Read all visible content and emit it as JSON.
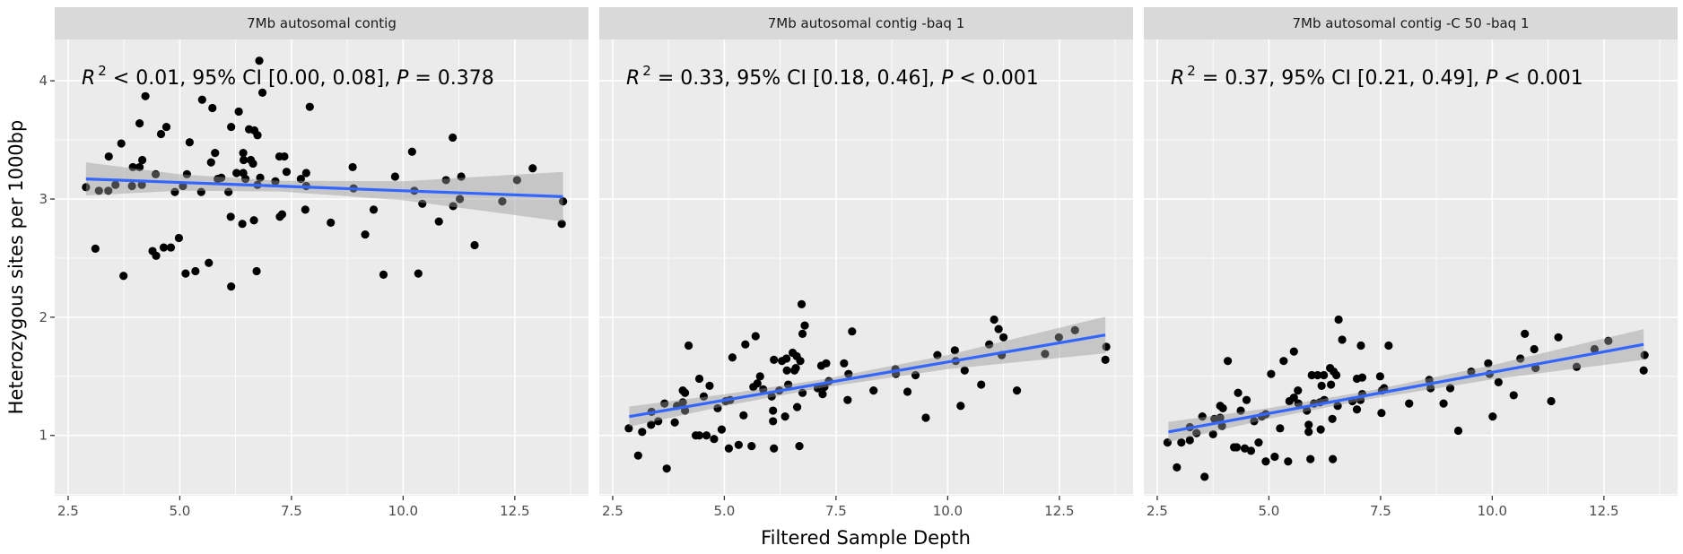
{
  "chart_data": {
    "type": "scatter",
    "xlabel": "Filtered Sample Depth",
    "ylabel": "Heterozygous sites per 1000bp",
    "xlim": [
      2.2,
      14.15
    ],
    "ylim": [
      0.49,
      4.35
    ],
    "x_ticks": [
      "2.5",
      "5.0",
      "7.5",
      "10.0",
      "12.5"
    ],
    "x_tick_values": [
      2.5,
      5.0,
      7.5,
      10.0,
      12.5
    ],
    "y_ticks": [
      "1",
      "2",
      "3",
      "4"
    ],
    "y_tick_values": [
      1,
      2,
      3,
      4
    ],
    "grid": true,
    "colors": {
      "points": "#000000",
      "fit_line": "#3366FF",
      "ci_band": "#999999",
      "panel_bg": "#EBEBEB",
      "strip_bg": "#D9D9D9"
    },
    "panels": [
      {
        "title": "7Mb autosomal contig",
        "annotation": {
          "r": "R",
          "sup": "2",
          "mid": " < 0.01, 95% CI [0.00, 0.08], ",
          "p": "P",
          "end": " = 0.378"
        },
        "points": [
          [
            2.9,
            3.1
          ],
          [
            3.11,
            2.58
          ],
          [
            3.19,
            3.07
          ],
          [
            3.4,
            3.07
          ],
          [
            3.41,
            3.36
          ],
          [
            3.56,
            3.12
          ],
          [
            3.69,
            3.47
          ],
          [
            3.74,
            2.35
          ],
          [
            3.93,
            3.11
          ],
          [
            3.95,
            3.27
          ],
          [
            4.1,
            3.27
          ],
          [
            4.1,
            3.64
          ],
          [
            4.15,
            3.12
          ],
          [
            4.16,
            3.33
          ],
          [
            4.23,
            3.87
          ],
          [
            4.39,
            2.56
          ],
          [
            4.46,
            3.21
          ],
          [
            4.47,
            2.52
          ],
          [
            4.58,
            3.55
          ],
          [
            4.64,
            2.59
          ],
          [
            4.7,
            3.61
          ],
          [
            4.8,
            2.59
          ],
          [
            4.89,
            3.06
          ],
          [
            4.98,
            2.67
          ],
          [
            5.07,
            3.11
          ],
          [
            5.13,
            2.37
          ],
          [
            5.16,
            3.21
          ],
          [
            5.22,
            3.48
          ],
          [
            5.35,
            2.39
          ],
          [
            5.48,
            3.06
          ],
          [
            5.5,
            3.84
          ],
          [
            5.65,
            2.46
          ],
          [
            5.7,
            3.31
          ],
          [
            5.73,
            3.77
          ],
          [
            5.79,
            3.39
          ],
          [
            5.85,
            3.17
          ],
          [
            5.93,
            3.18
          ],
          [
            6.09,
            3.06
          ],
          [
            6.14,
            2.85
          ],
          [
            6.15,
            3.61
          ],
          [
            6.15,
            2.26
          ],
          [
            6.27,
            3.22
          ],
          [
            6.32,
            3.74
          ],
          [
            6.4,
            2.79
          ],
          [
            6.42,
            3.39
          ],
          [
            6.42,
            3.22
          ],
          [
            6.43,
            3.33
          ],
          [
            6.47,
            3.17
          ],
          [
            6.55,
            3.59
          ],
          [
            6.59,
            3.33
          ],
          [
            6.64,
            3.3
          ],
          [
            6.66,
            2.82
          ],
          [
            6.67,
            3.58
          ],
          [
            6.72,
            2.39
          ],
          [
            6.74,
            3.12
          ],
          [
            6.74,
            3.54
          ],
          [
            6.78,
            4.17
          ],
          [
            6.8,
            3.18
          ],
          [
            6.85,
            3.9
          ],
          [
            7.14,
            3.15
          ],
          [
            7.24,
            2.85
          ],
          [
            7.23,
            3.36
          ],
          [
            7.29,
            2.87
          ],
          [
            7.34,
            3.36
          ],
          [
            7.39,
            3.23
          ],
          [
            7.71,
            3.17
          ],
          [
            7.81,
            2.91
          ],
          [
            7.83,
            3.22
          ],
          [
            7.83,
            3.11
          ],
          [
            7.91,
            3.78
          ],
          [
            8.38,
            2.8
          ],
          [
            8.87,
            3.27
          ],
          [
            8.89,
            3.09
          ],
          [
            9.15,
            2.7
          ],
          [
            9.34,
            2.91
          ],
          [
            9.56,
            2.36
          ],
          [
            9.82,
            3.19
          ],
          [
            10.2,
            3.4
          ],
          [
            10.25,
            3.07
          ],
          [
            10.34,
            2.37
          ],
          [
            10.43,
            2.96
          ],
          [
            10.8,
            2.81
          ],
          [
            10.96,
            3.16
          ],
          [
            11.11,
            3.52
          ],
          [
            11.12,
            2.94
          ],
          [
            11.27,
            3.0
          ],
          [
            11.3,
            3.19
          ],
          [
            11.6,
            2.61
          ],
          [
            12.22,
            2.98
          ],
          [
            12.55,
            3.16
          ],
          [
            12.9,
            3.26
          ],
          [
            13.55,
            2.79
          ],
          [
            13.58,
            2.98
          ]
        ],
        "fit": {
          "x": [
            2.9,
            5.0,
            7.2,
            10.0,
            13.58
          ],
          "y": [
            3.17,
            3.14,
            3.11,
            3.07,
            3.02
          ],
          "lower": [
            3.03,
            3.07,
            3.065,
            2.99,
            2.81
          ],
          "upper": [
            3.31,
            3.21,
            3.155,
            3.15,
            3.23
          ]
        }
      },
      {
        "title": "7Mb autosomal contig -baq 1",
        "annotation": {
          "r": "R",
          "sup": "2",
          "mid": " = 0.33, 95% CI [0.18, 0.46], ",
          "p": "P",
          "end": " < 0.001"
        },
        "points": [
          [
            2.86,
            1.06
          ],
          [
            3.07,
            0.83
          ],
          [
            3.16,
            1.03
          ],
          [
            3.37,
            1.2
          ],
          [
            3.36,
            1.09
          ],
          [
            3.52,
            1.12
          ],
          [
            3.66,
            1.27
          ],
          [
            3.71,
            0.72
          ],
          [
            3.89,
            1.11
          ],
          [
            3.94,
            1.25
          ],
          [
            4.07,
            1.28
          ],
          [
            4.12,
            1.21
          ],
          [
            4.07,
            1.38
          ],
          [
            4.12,
            1.36
          ],
          [
            4.2,
            1.76
          ],
          [
            4.36,
            1.0
          ],
          [
            4.44,
            1.0
          ],
          [
            4.44,
            1.48
          ],
          [
            4.54,
            1.33
          ],
          [
            4.6,
            1.0
          ],
          [
            4.67,
            1.42
          ],
          [
            4.77,
            0.97
          ],
          [
            4.85,
            1.23
          ],
          [
            4.94,
            1.05
          ],
          [
            5.03,
            1.29
          ],
          [
            5.1,
            0.89
          ],
          [
            5.13,
            1.3
          ],
          [
            5.18,
            1.66
          ],
          [
            5.32,
            0.92
          ],
          [
            5.43,
            1.17
          ],
          [
            5.47,
            1.77
          ],
          [
            5.61,
            0.91
          ],
          [
            5.65,
            1.41
          ],
          [
            5.7,
            1.84
          ],
          [
            5.74,
            1.44
          ],
          [
            5.8,
            1.5
          ],
          [
            5.87,
            1.39
          ],
          [
            6.06,
            1.33
          ],
          [
            6.09,
            1.12
          ],
          [
            6.09,
            1.21
          ],
          [
            6.11,
            0.89
          ],
          [
            6.11,
            1.64
          ],
          [
            6.23,
            1.38
          ],
          [
            6.29,
            1.63
          ],
          [
            6.36,
            1.16
          ],
          [
            6.39,
            1.65
          ],
          [
            6.4,
            1.55
          ],
          [
            6.43,
            1.43
          ],
          [
            6.53,
            1.7
          ],
          [
            6.57,
            1.55
          ],
          [
            6.6,
            1.57
          ],
          [
            6.62,
            1.67
          ],
          [
            6.63,
            1.24
          ],
          [
            6.68,
            0.91
          ],
          [
            6.7,
            1.63
          ],
          [
            6.73,
            2.11
          ],
          [
            6.75,
            1.36
          ],
          [
            6.75,
            1.86
          ],
          [
            6.8,
            1.93
          ],
          [
            7.09,
            1.4
          ],
          [
            7.17,
            1.59
          ],
          [
            7.2,
            1.35
          ],
          [
            7.24,
            1.41
          ],
          [
            7.28,
            1.61
          ],
          [
            7.34,
            1.46
          ],
          [
            7.68,
            1.61
          ],
          [
            7.76,
            1.3
          ],
          [
            7.78,
            1.52
          ],
          [
            7.86,
            1.88
          ],
          [
            8.34,
            1.38
          ],
          [
            8.83,
            1.56
          ],
          [
            8.84,
            1.52
          ],
          [
            9.1,
            1.37
          ],
          [
            9.28,
            1.51
          ],
          [
            9.51,
            1.15
          ],
          [
            9.77,
            1.68
          ],
          [
            10.16,
            1.72
          ],
          [
            10.18,
            1.63
          ],
          [
            10.29,
            1.25
          ],
          [
            10.38,
            1.55
          ],
          [
            10.75,
            1.43
          ],
          [
            10.93,
            1.77
          ],
          [
            11.04,
            1.98
          ],
          [
            11.14,
            1.9
          ],
          [
            11.25,
            1.83
          ],
          [
            11.21,
            1.68
          ],
          [
            11.55,
            1.38
          ],
          [
            12.18,
            1.69
          ],
          [
            12.49,
            1.83
          ],
          [
            12.85,
            1.89
          ],
          [
            13.53,
            1.64
          ],
          [
            13.55,
            1.75
          ]
        ],
        "fit": {
          "x": [
            2.87,
            5.0,
            7.2,
            10.0,
            13.53
          ],
          "y": [
            1.16,
            1.298,
            1.44,
            1.621,
            1.85
          ],
          "lower": [
            1.075,
            1.248,
            1.405,
            1.561,
            1.695
          ],
          "upper": [
            1.245,
            1.348,
            1.475,
            1.681,
            2.005
          ]
        }
      },
      {
        "title": "7Mb autosomal contig -C 50 -baq 1",
        "annotation": {
          "r": "R",
          "sup": "2",
          "mid": " = 0.37, 95% CI [0.21, 0.49], ",
          "p": "P",
          "end": " < 0.001"
        },
        "points": [
          [
            2.73,
            0.94
          ],
          [
            2.94,
            0.73
          ],
          [
            3.04,
            0.94
          ],
          [
            3.23,
            0.96
          ],
          [
            3.23,
            1.07
          ],
          [
            3.38,
            1.02
          ],
          [
            3.51,
            1.16
          ],
          [
            3.56,
            0.65
          ],
          [
            3.75,
            1.01
          ],
          [
            3.78,
            1.14
          ],
          [
            3.91,
            1.15
          ],
          [
            3.91,
            1.25
          ],
          [
            3.95,
            1.08
          ],
          [
            3.97,
            1.23
          ],
          [
            4.08,
            1.63
          ],
          [
            4.22,
            0.9
          ],
          [
            4.28,
            0.9
          ],
          [
            4.31,
            1.36
          ],
          [
            4.37,
            1.21
          ],
          [
            4.46,
            0.89
          ],
          [
            4.5,
            1.3
          ],
          [
            4.6,
            0.87
          ],
          [
            4.67,
            1.12
          ],
          [
            4.77,
            0.94
          ],
          [
            4.84,
            1.16
          ],
          [
            4.93,
            1.18
          ],
          [
            4.93,
            0.78
          ],
          [
            5.05,
            1.52
          ],
          [
            5.13,
            0.82
          ],
          [
            5.25,
            1.06
          ],
          [
            5.33,
            1.63
          ],
          [
            5.43,
            0.78
          ],
          [
            5.46,
            1.29
          ],
          [
            5.56,
            1.71
          ],
          [
            5.56,
            1.32
          ],
          [
            5.65,
            1.38
          ],
          [
            5.66,
            1.27
          ],
          [
            5.85,
            1.21
          ],
          [
            5.89,
            1.09
          ],
          [
            5.89,
            1.03
          ],
          [
            5.93,
            0.8
          ],
          [
            5.96,
            1.51
          ],
          [
            6.01,
            1.27
          ],
          [
            6.09,
            1.51
          ],
          [
            6.14,
            1.28
          ],
          [
            6.16,
            1.05
          ],
          [
            6.18,
            1.42
          ],
          [
            6.23,
            1.51
          ],
          [
            6.24,
            1.3
          ],
          [
            6.37,
            1.57
          ],
          [
            6.39,
            1.43
          ],
          [
            6.42,
            1.14
          ],
          [
            6.43,
            0.8
          ],
          [
            6.45,
            1.54
          ],
          [
            6.51,
            1.51
          ],
          [
            6.54,
            1.25
          ],
          [
            6.56,
            1.98
          ],
          [
            6.64,
            1.81
          ],
          [
            6.87,
            1.29
          ],
          [
            6.97,
            1.22
          ],
          [
            6.97,
            1.48
          ],
          [
            7.05,
            1.3
          ],
          [
            7.06,
            1.76
          ],
          [
            7.09,
            1.49
          ],
          [
            7.09,
            1.35
          ],
          [
            7.49,
            1.5
          ],
          [
            7.52,
            1.19
          ],
          [
            7.53,
            1.38
          ],
          [
            7.58,
            1.4
          ],
          [
            7.68,
            1.76
          ],
          [
            8.14,
            1.27
          ],
          [
            8.59,
            1.47
          ],
          [
            8.62,
            1.4
          ],
          [
            8.91,
            1.27
          ],
          [
            9.06,
            1.4
          ],
          [
            9.24,
            1.04
          ],
          [
            9.53,
            1.54
          ],
          [
            9.91,
            1.61
          ],
          [
            9.94,
            1.52
          ],
          [
            10.01,
            1.16
          ],
          [
            10.14,
            1.45
          ],
          [
            10.48,
            1.34
          ],
          [
            10.63,
            1.65
          ],
          [
            10.73,
            1.86
          ],
          [
            10.94,
            1.73
          ],
          [
            10.97,
            1.57
          ],
          [
            11.32,
            1.29
          ],
          [
            11.48,
            1.83
          ],
          [
            11.89,
            1.58
          ],
          [
            12.29,
            1.73
          ],
          [
            12.6,
            1.8
          ],
          [
            13.39,
            1.55
          ],
          [
            13.41,
            1.68
          ]
        ],
        "fit": {
          "x": [
            2.75,
            5.0,
            7.2,
            10.0,
            13.39
          ],
          "y": [
            1.03,
            1.186,
            1.339,
            1.534,
            1.77
          ],
          "lower": [
            0.945,
            1.141,
            1.304,
            1.474,
            1.64
          ],
          "upper": [
            1.115,
            1.231,
            1.374,
            1.594,
            1.9
          ]
        }
      }
    ]
  }
}
